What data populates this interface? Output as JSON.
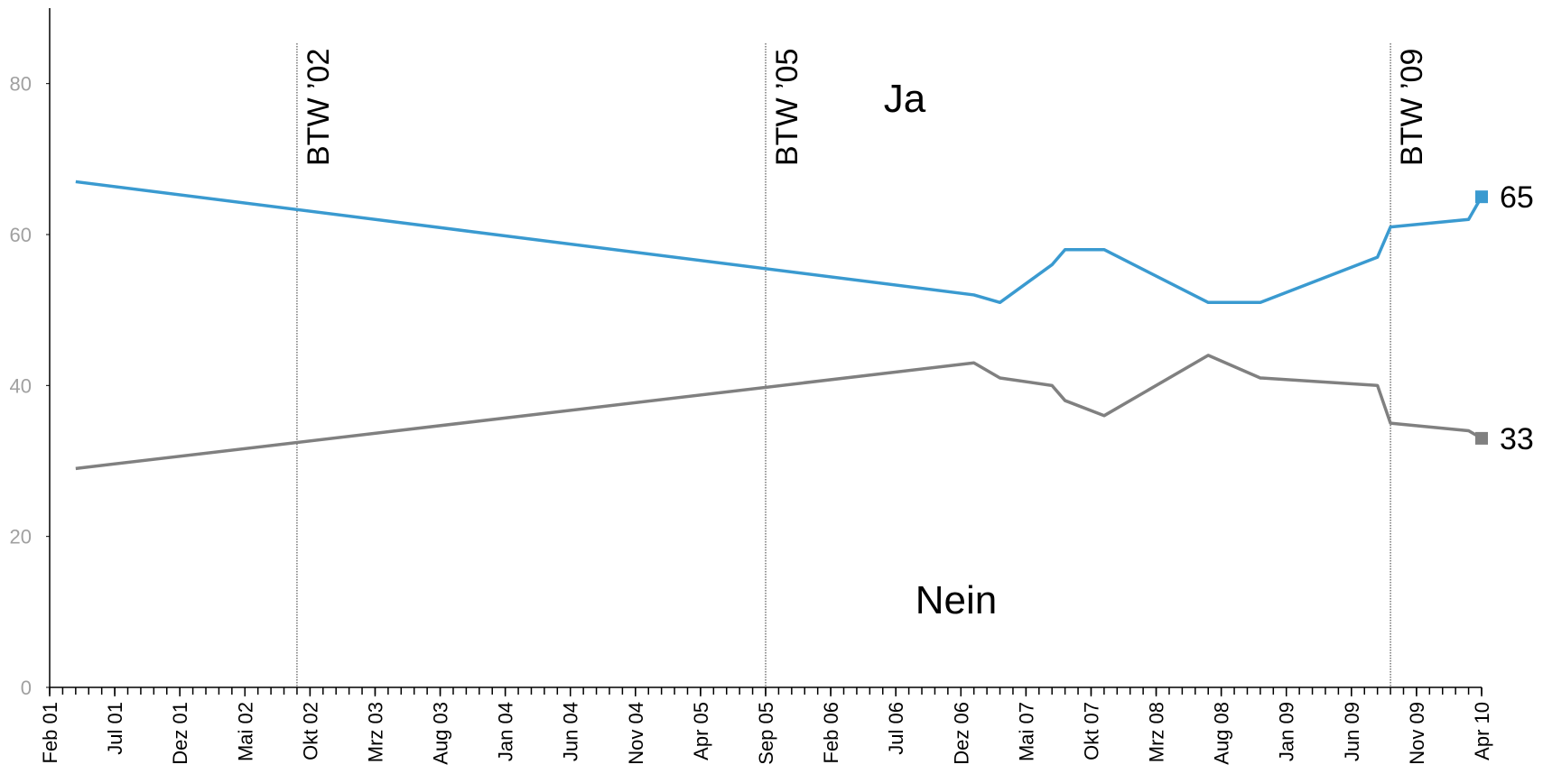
{
  "chart_data": {
    "type": "line",
    "x": [
      "2001-04",
      "2007-01",
      "2007-03",
      "2007-07",
      "2007-08",
      "2007-11",
      "2008-07",
      "2008-11",
      "2009-08",
      "2009-09",
      "2010-03",
      "2010-04"
    ],
    "series": [
      {
        "name": "Ja",
        "color": "#3a9ad0",
        "values": [
          67,
          52,
          51,
          56,
          58,
          58,
          51,
          51,
          57,
          61,
          62,
          65
        ]
      },
      {
        "name": "Nein",
        "color": "#808080",
        "values": [
          29,
          43,
          41,
          40,
          38,
          36,
          44,
          41,
          40,
          35,
          34,
          33
        ]
      }
    ],
    "xlim": [
      "2001-02",
      "2010-04"
    ],
    "xticks": [
      {
        "value": "2001-02",
        "label": "Feb 01"
      },
      {
        "value": "2001-07",
        "label": "Jul 01"
      },
      {
        "value": "2001-12",
        "label": "Dez 01"
      },
      {
        "value": "2002-05",
        "label": "Mai 02"
      },
      {
        "value": "2002-10",
        "label": "Okt 02"
      },
      {
        "value": "2003-03",
        "label": "Mrz 03"
      },
      {
        "value": "2003-08",
        "label": "Aug 03"
      },
      {
        "value": "2004-01",
        "label": "Jan 04"
      },
      {
        "value": "2004-06",
        "label": "Jun 04"
      },
      {
        "value": "2004-11",
        "label": "Nov 04"
      },
      {
        "value": "2005-04",
        "label": "Apr 05"
      },
      {
        "value": "2005-09",
        "label": "Sep 05"
      },
      {
        "value": "2006-02",
        "label": "Feb 06"
      },
      {
        "value": "2006-07",
        "label": "Jul 06"
      },
      {
        "value": "2006-12",
        "label": "Dez 06"
      },
      {
        "value": "2007-05",
        "label": "Mai 07"
      },
      {
        "value": "2007-10",
        "label": "Okt 07"
      },
      {
        "value": "2008-03",
        "label": "Mrz 08"
      },
      {
        "value": "2008-08",
        "label": "Aug 08"
      },
      {
        "value": "2009-01",
        "label": "Jan 09"
      },
      {
        "value": "2009-06",
        "label": "Jun 09"
      },
      {
        "value": "2009-11",
        "label": "Nov 09"
      },
      {
        "value": "2010-04",
        "label": "Apr 10"
      }
    ],
    "ylim": [
      0,
      90
    ],
    "yticks": [
      0,
      20,
      40,
      60,
      80
    ],
    "annotations": [
      {
        "x": "2002-09",
        "text": "BTW ’02"
      },
      {
        "x": "2005-09",
        "text": "BTW ’05"
      },
      {
        "x": "2009-09",
        "text": "BTW ’09"
      }
    ]
  }
}
